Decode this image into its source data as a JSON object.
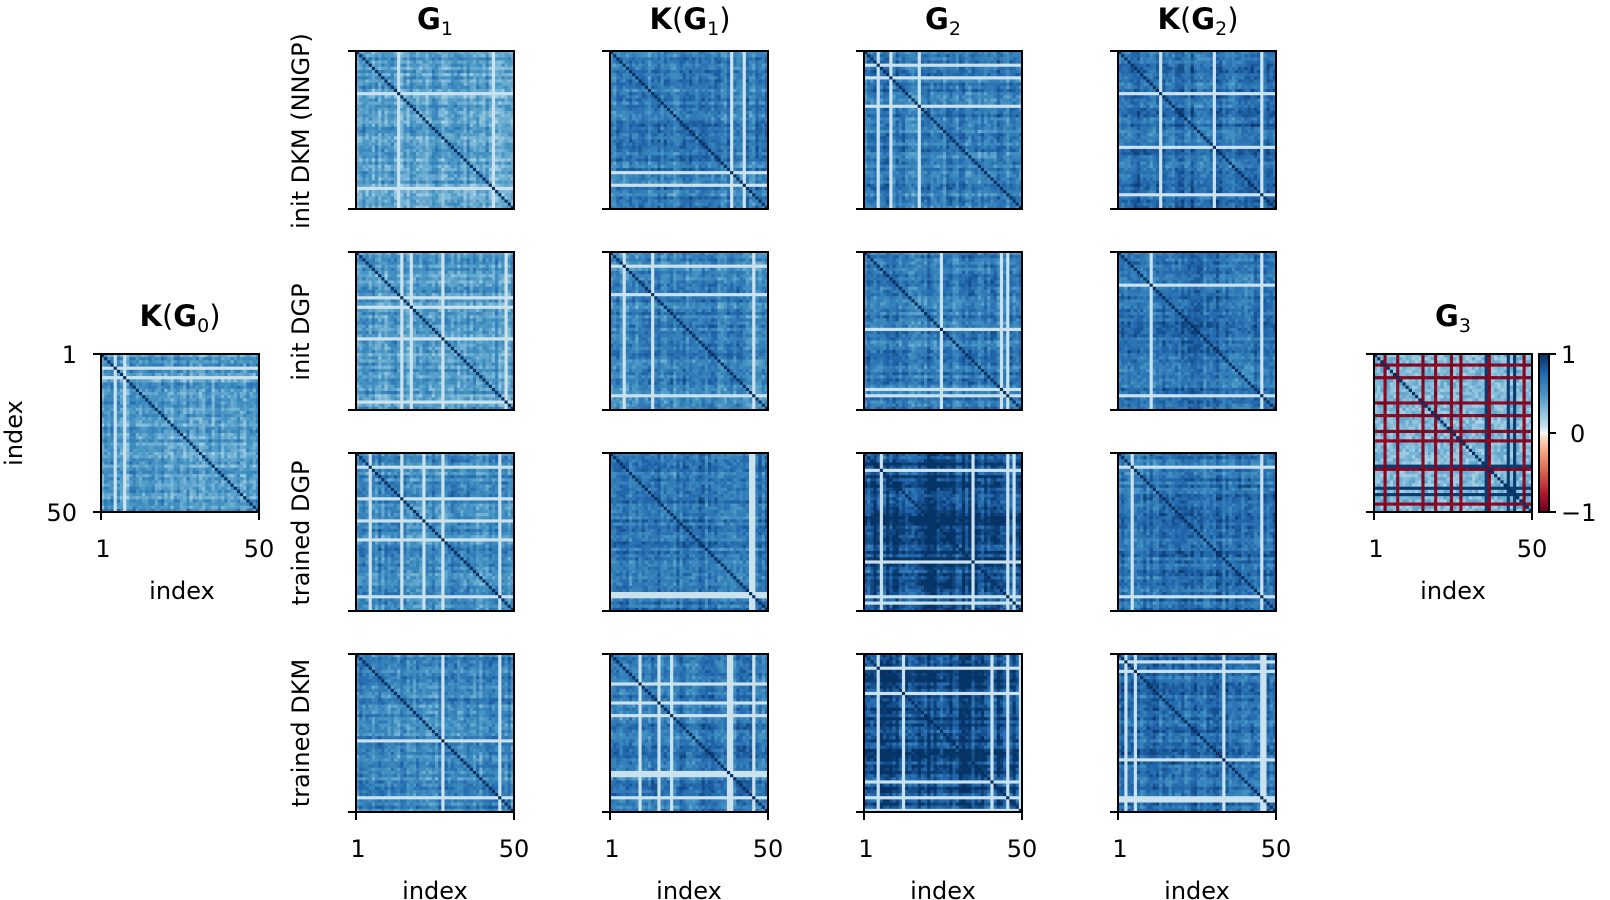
{
  "chart_data": {
    "type": "heatmap",
    "matrix_size": 50,
    "colormap": "RdBu",
    "value_range": [
      -1,
      1
    ],
    "axis_label": "index",
    "tick_labels": [
      "1",
      "50"
    ],
    "k0_panel": {
      "title_main": "K",
      "title_inner": "G",
      "title_sub": "0",
      "ylabel": "index",
      "xlabel": "index",
      "x_ticks": [
        "1",
        "50"
      ],
      "y_ticks": [
        "1",
        "50"
      ],
      "typical_value": 0.45
    },
    "column_titles": [
      {
        "wrap": false,
        "main": "G",
        "sub": "1"
      },
      {
        "wrap": true,
        "main": "K",
        "inner": "G",
        "sub": "1"
      },
      {
        "wrap": false,
        "main": "G",
        "sub": "2"
      },
      {
        "wrap": true,
        "main": "K",
        "inner": "G",
        "sub": "2"
      }
    ],
    "row_labels": [
      "init DKM (NNGP)",
      "init DGP",
      "trained DGP",
      "trained DKM"
    ],
    "bottom_xlabels": [
      "index",
      "index",
      "index",
      "index"
    ],
    "bottom_ticks": [
      "1",
      "50"
    ],
    "typical_values": [
      [
        0.45,
        0.6,
        0.6,
        0.68
      ],
      [
        0.45,
        0.6,
        0.6,
        0.68
      ],
      [
        0.55,
        0.65,
        0.9,
        0.68
      ],
      [
        0.55,
        0.65,
        0.9,
        0.68
      ]
    ],
    "g3_panel": {
      "title_main": "G",
      "title_sub": "3",
      "xlabel": "index",
      "x_ticks": [
        "1",
        "50"
      ],
      "typical_value": 0.3,
      "colorbar_ticks": [
        "1",
        "0",
        "−1"
      ],
      "colorbar_values": [
        1,
        0,
        -1
      ]
    }
  }
}
